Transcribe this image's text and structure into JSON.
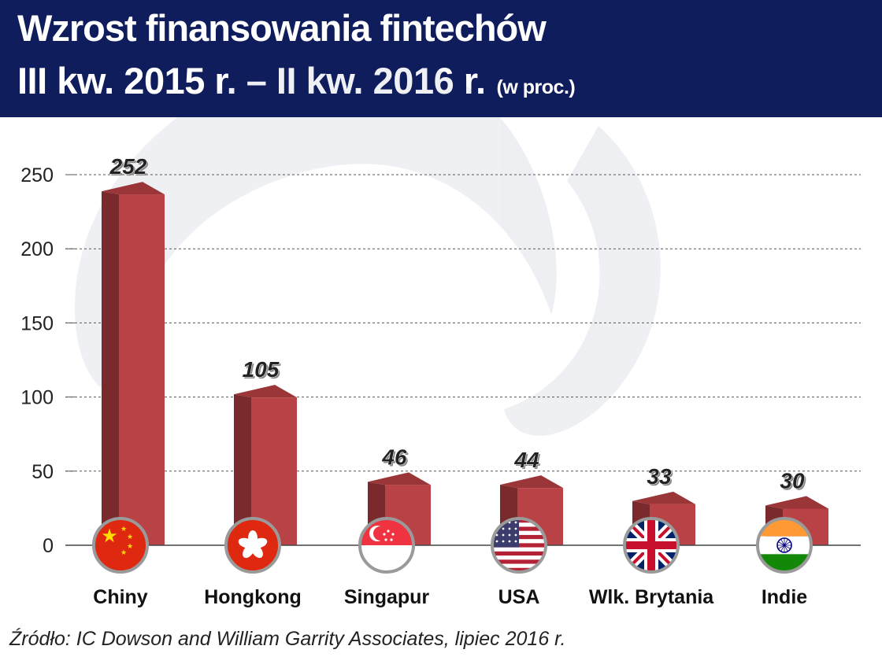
{
  "header": {
    "title_line1": "Wzrost finansowania fintechów",
    "title_line2": "III kw. 2015 r. – II kw. 2016 r.",
    "unit": "(w proc.)"
  },
  "source": "Źródło: IC Dowson and William Garrity Associates, lipiec 2016 r.",
  "colors": {
    "header_bg": "#0f1d5c",
    "bar_front": "#b84245",
    "bar_side": "#7a2a2c",
    "bar_top": "#9a3538"
  },
  "chart_data": {
    "type": "bar",
    "categories": [
      "Chiny",
      "Hongkong",
      "Singapur",
      "USA",
      "Wlk. Brytania",
      "Indie"
    ],
    "category_labels": [
      "Chiny",
      "Hongkong",
      "Singapur",
      "USA",
      "Wlk. Brytania",
      "Indie"
    ],
    "flags": [
      "china-flag-icon",
      "hong-kong-flag-icon",
      "singapore-flag-icon",
      "usa-flag-icon",
      "uk-flag-icon",
      "india-flag-icon"
    ],
    "values": [
      252,
      105,
      46,
      44,
      33,
      30
    ],
    "title": "Wzrost finansowania fintechów",
    "xlabel": "",
    "ylabel": "",
    "ylim": [
      0,
      250
    ],
    "yticks": [
      0,
      50,
      100,
      150,
      200,
      250
    ],
    "grid": true
  }
}
